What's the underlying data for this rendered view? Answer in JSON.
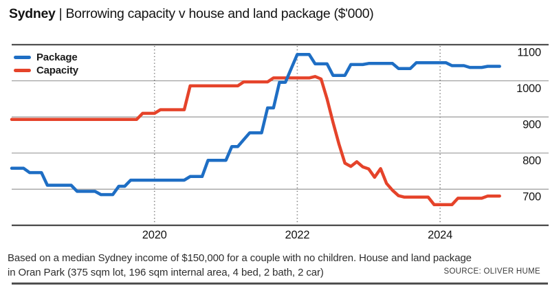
{
  "header": {
    "title_brand": "Sydney",
    "title_rest": "| Borrowing capacity v house and land package ($'000)"
  },
  "footnote": {
    "lines": [
      "Based on a median Sydney income of $150,000 for a couple with no children. House and land package",
      "in Oran Park (375 sqm lot, 196 sqm internal area, 4 bed, 2 bath, 2 car)"
    ],
    "source": "SOURCE: OLIVER HUME"
  },
  "colors": {
    "package_blue": "#1e6ec4",
    "capacity_red": "#e5432a",
    "gridline": "#9a9a9a",
    "border": "#4f4f4f",
    "dotted_tick": "#7b7b7b",
    "text": "#141414"
  },
  "chart_data": {
    "type": "line",
    "title": "Sydney | Borrowing capacity v house and land package ($'000)",
    "units": "$'000",
    "x_start": "2018-01",
    "x_end": "2024-11",
    "x_frequency": "monthly",
    "xlim": [
      2018.0,
      2025.52
    ],
    "ylim": [
      600,
      1100
    ],
    "y_ticks": [
      700,
      800,
      900,
      1000,
      1100
    ],
    "x_ticks": [
      2020,
      2022,
      2024
    ],
    "x_tick_labels": [
      "2020",
      "2022",
      "2024"
    ],
    "grid": "horizontal",
    "legend_position": "top-left",
    "series": [
      {
        "name": "Package",
        "color": "#1e6ec4",
        "values": [
          758,
          758,
          758,
          746,
          746,
          746,
          711,
          711,
          711,
          711,
          711,
          694,
          694,
          694,
          694,
          685,
          685,
          685,
          708,
          708,
          725,
          725,
          725,
          725,
          725,
          725,
          725,
          725,
          725,
          725,
          735,
          735,
          735,
          780,
          780,
          780,
          780,
          818,
          818,
          837,
          856,
          856,
          856,
          925,
          925,
          996,
          996,
          1035,
          1073,
          1073,
          1073,
          1047,
          1047,
          1047,
          1015,
          1015,
          1015,
          1045,
          1045,
          1045,
          1048,
          1048,
          1048,
          1048,
          1048,
          1034,
          1034,
          1034,
          1050,
          1050,
          1050,
          1050,
          1050,
          1050,
          1042,
          1042,
          1042,
          1037,
          1037,
          1037,
          1040,
          1040,
          1040
        ]
      },
      {
        "name": "Capacity",
        "color": "#e5432a",
        "values": [
          893,
          893,
          893,
          893,
          893,
          893,
          893,
          893,
          893,
          893,
          893,
          893,
          893,
          893,
          893,
          893,
          893,
          893,
          893,
          893,
          893,
          893,
          910,
          910,
          910,
          920,
          920,
          920,
          920,
          920,
          986,
          986,
          986,
          986,
          986,
          986,
          986,
          986,
          986,
          997,
          997,
          997,
          997,
          997,
          1008,
          1008,
          1008,
          1008,
          1008,
          1008,
          1008,
          1012,
          1005,
          950,
          885,
          825,
          772,
          763,
          776,
          762,
          756,
          733,
          757,
          716,
          697,
          682,
          678,
          678,
          678,
          678,
          678,
          657,
          657,
          657,
          657,
          675,
          675,
          675,
          675,
          675,
          681,
          681,
          681
        ]
      }
    ]
  }
}
